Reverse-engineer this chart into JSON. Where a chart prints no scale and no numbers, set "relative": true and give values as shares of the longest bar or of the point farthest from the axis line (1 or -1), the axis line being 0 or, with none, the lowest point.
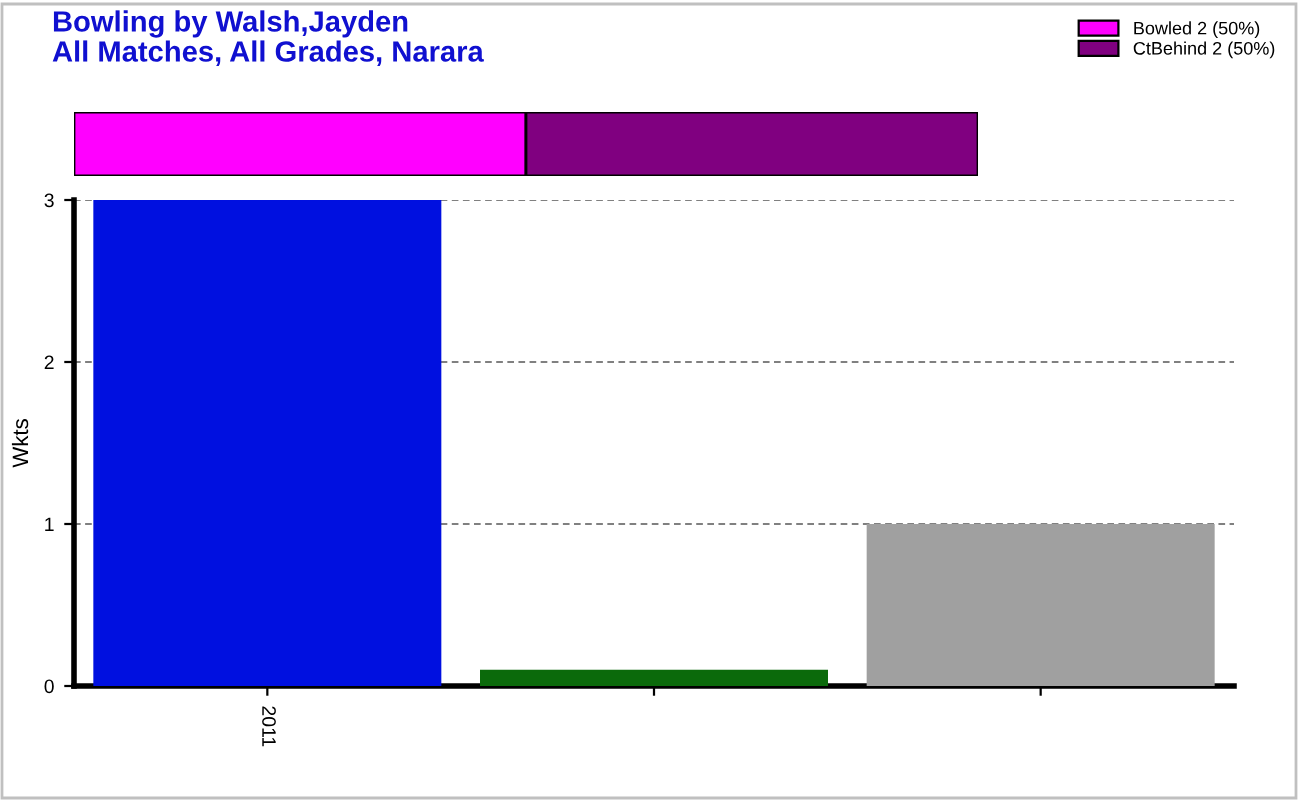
{
  "chart_data": [
    {
      "type": "bar",
      "title": "Bowling by Walsh,Jayden",
      "subtitle": "All Matches, All Grades, Narara",
      "orientation": "horizontal",
      "stacked": true,
      "relative": true,
      "categories": [
        null
      ],
      "legend": "top right",
      "series": [
        {
          "name": "Bowled 2 (50%)",
          "color": "#ff00ff",
          "values": [
            0.5
          ]
        },
        {
          "name": "CtBehind 2 (50%)",
          "color": "#800080",
          "values": [
            0.5
          ]
        }
      ]
    },
    {
      "type": "bar",
      "ylabel": "Wkts",
      "categories": [
        "2011",
        null,
        null
      ],
      "values": [
        3,
        0.1,
        1
      ],
      "colors": [
        "#0010e0",
        "#0b6a0b",
        "#a0a0a0"
      ],
      "ylim": [
        0,
        3
      ],
      "yticks": [
        0,
        1,
        2,
        3
      ],
      "grid": "y"
    }
  ]
}
